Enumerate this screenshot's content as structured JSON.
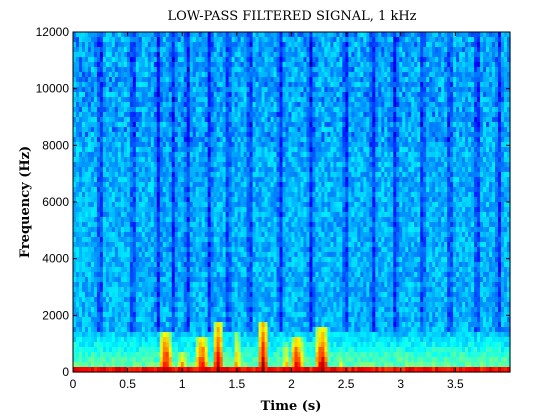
{
  "chart_data": {
    "type": "heatmap",
    "title": "LOW-PASS FILTERED SIGNAL, 1 kHz",
    "xlabel": "Time (s)",
    "ylabel": "Frequency (Hz)",
    "xlim": [
      0,
      4.0
    ],
    "ylim": [
      0,
      12000
    ],
    "x_ticks": [
      0,
      0.5,
      1,
      1.5,
      2,
      2.5,
      3,
      3.5
    ],
    "x_tick_labels": [
      "0",
      "0.5",
      "1",
      "1.5",
      "2",
      "2.5",
      "3",
      "3.5"
    ],
    "y_ticks": [
      0,
      2000,
      4000,
      6000,
      8000,
      10000,
      12000
    ],
    "y_tick_labels": [
      "0",
      "2000",
      "4000",
      "6000",
      "8000",
      "10000",
      "12000"
    ],
    "colormap": "jet",
    "grid": false,
    "background_level": 0.3,
    "low_frequency_band": {
      "freq_range": [
        0,
        1500
      ],
      "level": 0.5
    },
    "energy_bursts": [
      {
        "time": 0.85,
        "width": 0.1,
        "max_freq": 1400,
        "level": 1.0
      },
      {
        "time": 1.0,
        "width": 0.08,
        "max_freq": 700,
        "level": 0.85
      },
      {
        "time": 1.18,
        "width": 0.1,
        "max_freq": 1200,
        "level": 1.0
      },
      {
        "time": 1.33,
        "width": 0.1,
        "max_freq": 1700,
        "level": 1.0
      },
      {
        "time": 1.5,
        "width": 0.06,
        "max_freq": 1500,
        "level": 0.8
      },
      {
        "time": 1.74,
        "width": 0.1,
        "max_freq": 1800,
        "level": 1.0
      },
      {
        "time": 1.95,
        "width": 0.06,
        "max_freq": 1100,
        "level": 0.8
      },
      {
        "time": 2.05,
        "width": 0.1,
        "max_freq": 1300,
        "level": 1.0
      },
      {
        "time": 2.28,
        "width": 0.12,
        "max_freq": 1600,
        "level": 1.0
      },
      {
        "time": 2.45,
        "width": 0.06,
        "max_freq": 700,
        "level": 0.7
      }
    ],
    "dark_stripes_times": [
      0.25,
      0.55,
      0.78,
      0.92,
      1.05,
      1.25,
      1.42,
      1.62,
      1.9,
      2.18,
      2.5,
      2.75,
      2.95,
      3.2,
      3.45,
      3.7,
      3.9
    ]
  }
}
